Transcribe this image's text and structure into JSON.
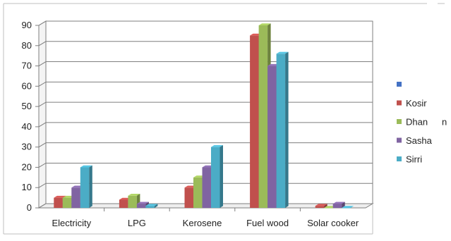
{
  "chart_data": {
    "type": "bar",
    "categories": [
      "Electricity",
      "LPG",
      "Kerosene",
      "Fuel  wood",
      "Solar cooker"
    ],
    "series": [
      {
        "name": "",
        "values": [
          0,
          0,
          0,
          0,
          0
        ],
        "color": "#4472C4"
      },
      {
        "name": "Kosir",
        "values": [
          5,
          4,
          10,
          85,
          1
        ],
        "color": "#C0504D"
      },
      {
        "name": "Dhan",
        "values": [
          5,
          6,
          15,
          90,
          0
        ],
        "color": "#9BBB59"
      },
      {
        "name": "Sasha",
        "values": [
          10,
          2,
          20,
          70,
          2
        ],
        "color": "#8064A2"
      },
      {
        "name": "Sirri",
        "values": [
          20,
          1,
          30,
          76,
          0
        ],
        "color": "#4BACC6"
      }
    ],
    "y_ticks": [
      "0",
      "10",
      "20",
      "30",
      "40",
      "50",
      "60",
      "70",
      "80",
      "90"
    ],
    "ylim": [
      0,
      90
    ],
    "grid": true,
    "legend_position": "right",
    "legend_stray_text": "n",
    "title": "",
    "xlabel": "",
    "ylabel": ""
  }
}
